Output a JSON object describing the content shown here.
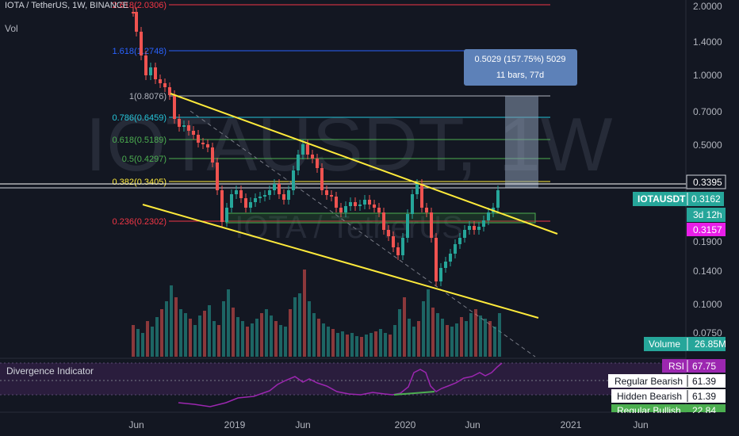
{
  "header": {
    "symbol_line": "IOTA / TetherUS, 1W, BINANCE",
    "vol_label": "Vol"
  },
  "watermark": {
    "main": "IOTAUSDT, 1W",
    "sub": "IOTA / TetherUS"
  },
  "price_axis": {
    "ticks": [
      "2.0000",
      "1.4000",
      "1.0000",
      "0.7000",
      "0.5000",
      "0.1900",
      "0.1400",
      "0.1000",
      "0.0750"
    ],
    "price_box": "0.3395",
    "symbol_label": "IOTAUSDT",
    "last_price": "0.3162",
    "countdown": "3d 12h",
    "magenta_price": "0.3157",
    "volume_label": "Volume",
    "volume_value": "26.85M"
  },
  "time_axis": {
    "ticks": [
      "Jun",
      "2019",
      "Jun",
      "2020",
      "Jun",
      "2021",
      "Jun"
    ]
  },
  "fib_levels": [
    {
      "label": "2.618(2.0306)",
      "color": "#f23645"
    },
    {
      "label": "1.618(1.2748)",
      "color": "#2962ff"
    },
    {
      "label": "1(0.8076)",
      "color": "#b2b5be"
    },
    {
      "label": "0.786(0.6459)",
      "color": "#26c6da"
    },
    {
      "label": "0.618(0.5189)",
      "color": "#4caf50"
    },
    {
      "label": "0.5(0.4297)",
      "color": "#4caf50"
    },
    {
      "label": "0.382(0.3405)",
      "color": "#ffeb3b"
    },
    {
      "label": "0.236(0.2302)",
      "color": "#f23645"
    }
  ],
  "measure_tooltip": {
    "line1": "0.5029 (157.75%) 5029",
    "line2": "11 bars, 77d"
  },
  "indicator": {
    "title": "Divergence Indicator",
    "rsi_label": "RSI",
    "rsi_value": "67.75",
    "regular_bearish_label": "Regular Bearish",
    "regular_bearish_value": "61.39",
    "hidden_bearish_label": "Hidden Bearish",
    "hidden_bearish_value": "61.39",
    "regular_bullish_label": "Regular Bullish",
    "regular_bullish_value": "22.84"
  },
  "colors": {
    "background": "#131722",
    "up": "#26a69a",
    "down": "#ef5350",
    "trendline": "#ffeb3b",
    "rsi": "#9c27b0",
    "magenta": "#e91ee8"
  }
}
